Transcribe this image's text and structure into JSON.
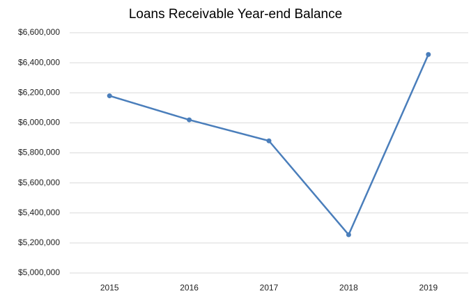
{
  "chart_data": {
    "type": "line",
    "title": "Loans Receivable Year-end Balance",
    "categories": [
      "2015",
      "2016",
      "2017",
      "2018",
      "2019"
    ],
    "series": [
      {
        "name": "Balance",
        "color": "#4a7ebb",
        "values": [
          6180000,
          6020000,
          5880000,
          5255000,
          6455000
        ]
      }
    ],
    "ylim": [
      5000000,
      6600000
    ],
    "yticks": [
      {
        "value": 5000000,
        "label": "$5,000,000"
      },
      {
        "value": 5200000,
        "label": "$5,200,000"
      },
      {
        "value": 5400000,
        "label": "$5,400,000"
      },
      {
        "value": 5600000,
        "label": "$5,600,000"
      },
      {
        "value": 5800000,
        "label": "$5,800,000"
      },
      {
        "value": 6000000,
        "label": "$6,000,000"
      },
      {
        "value": 6200000,
        "label": "$6,200,000"
      },
      {
        "value": 6400000,
        "label": "$6,400,000"
      },
      {
        "value": 6600000,
        "label": "$6,600,000"
      }
    ],
    "grid": true,
    "legend": false
  }
}
